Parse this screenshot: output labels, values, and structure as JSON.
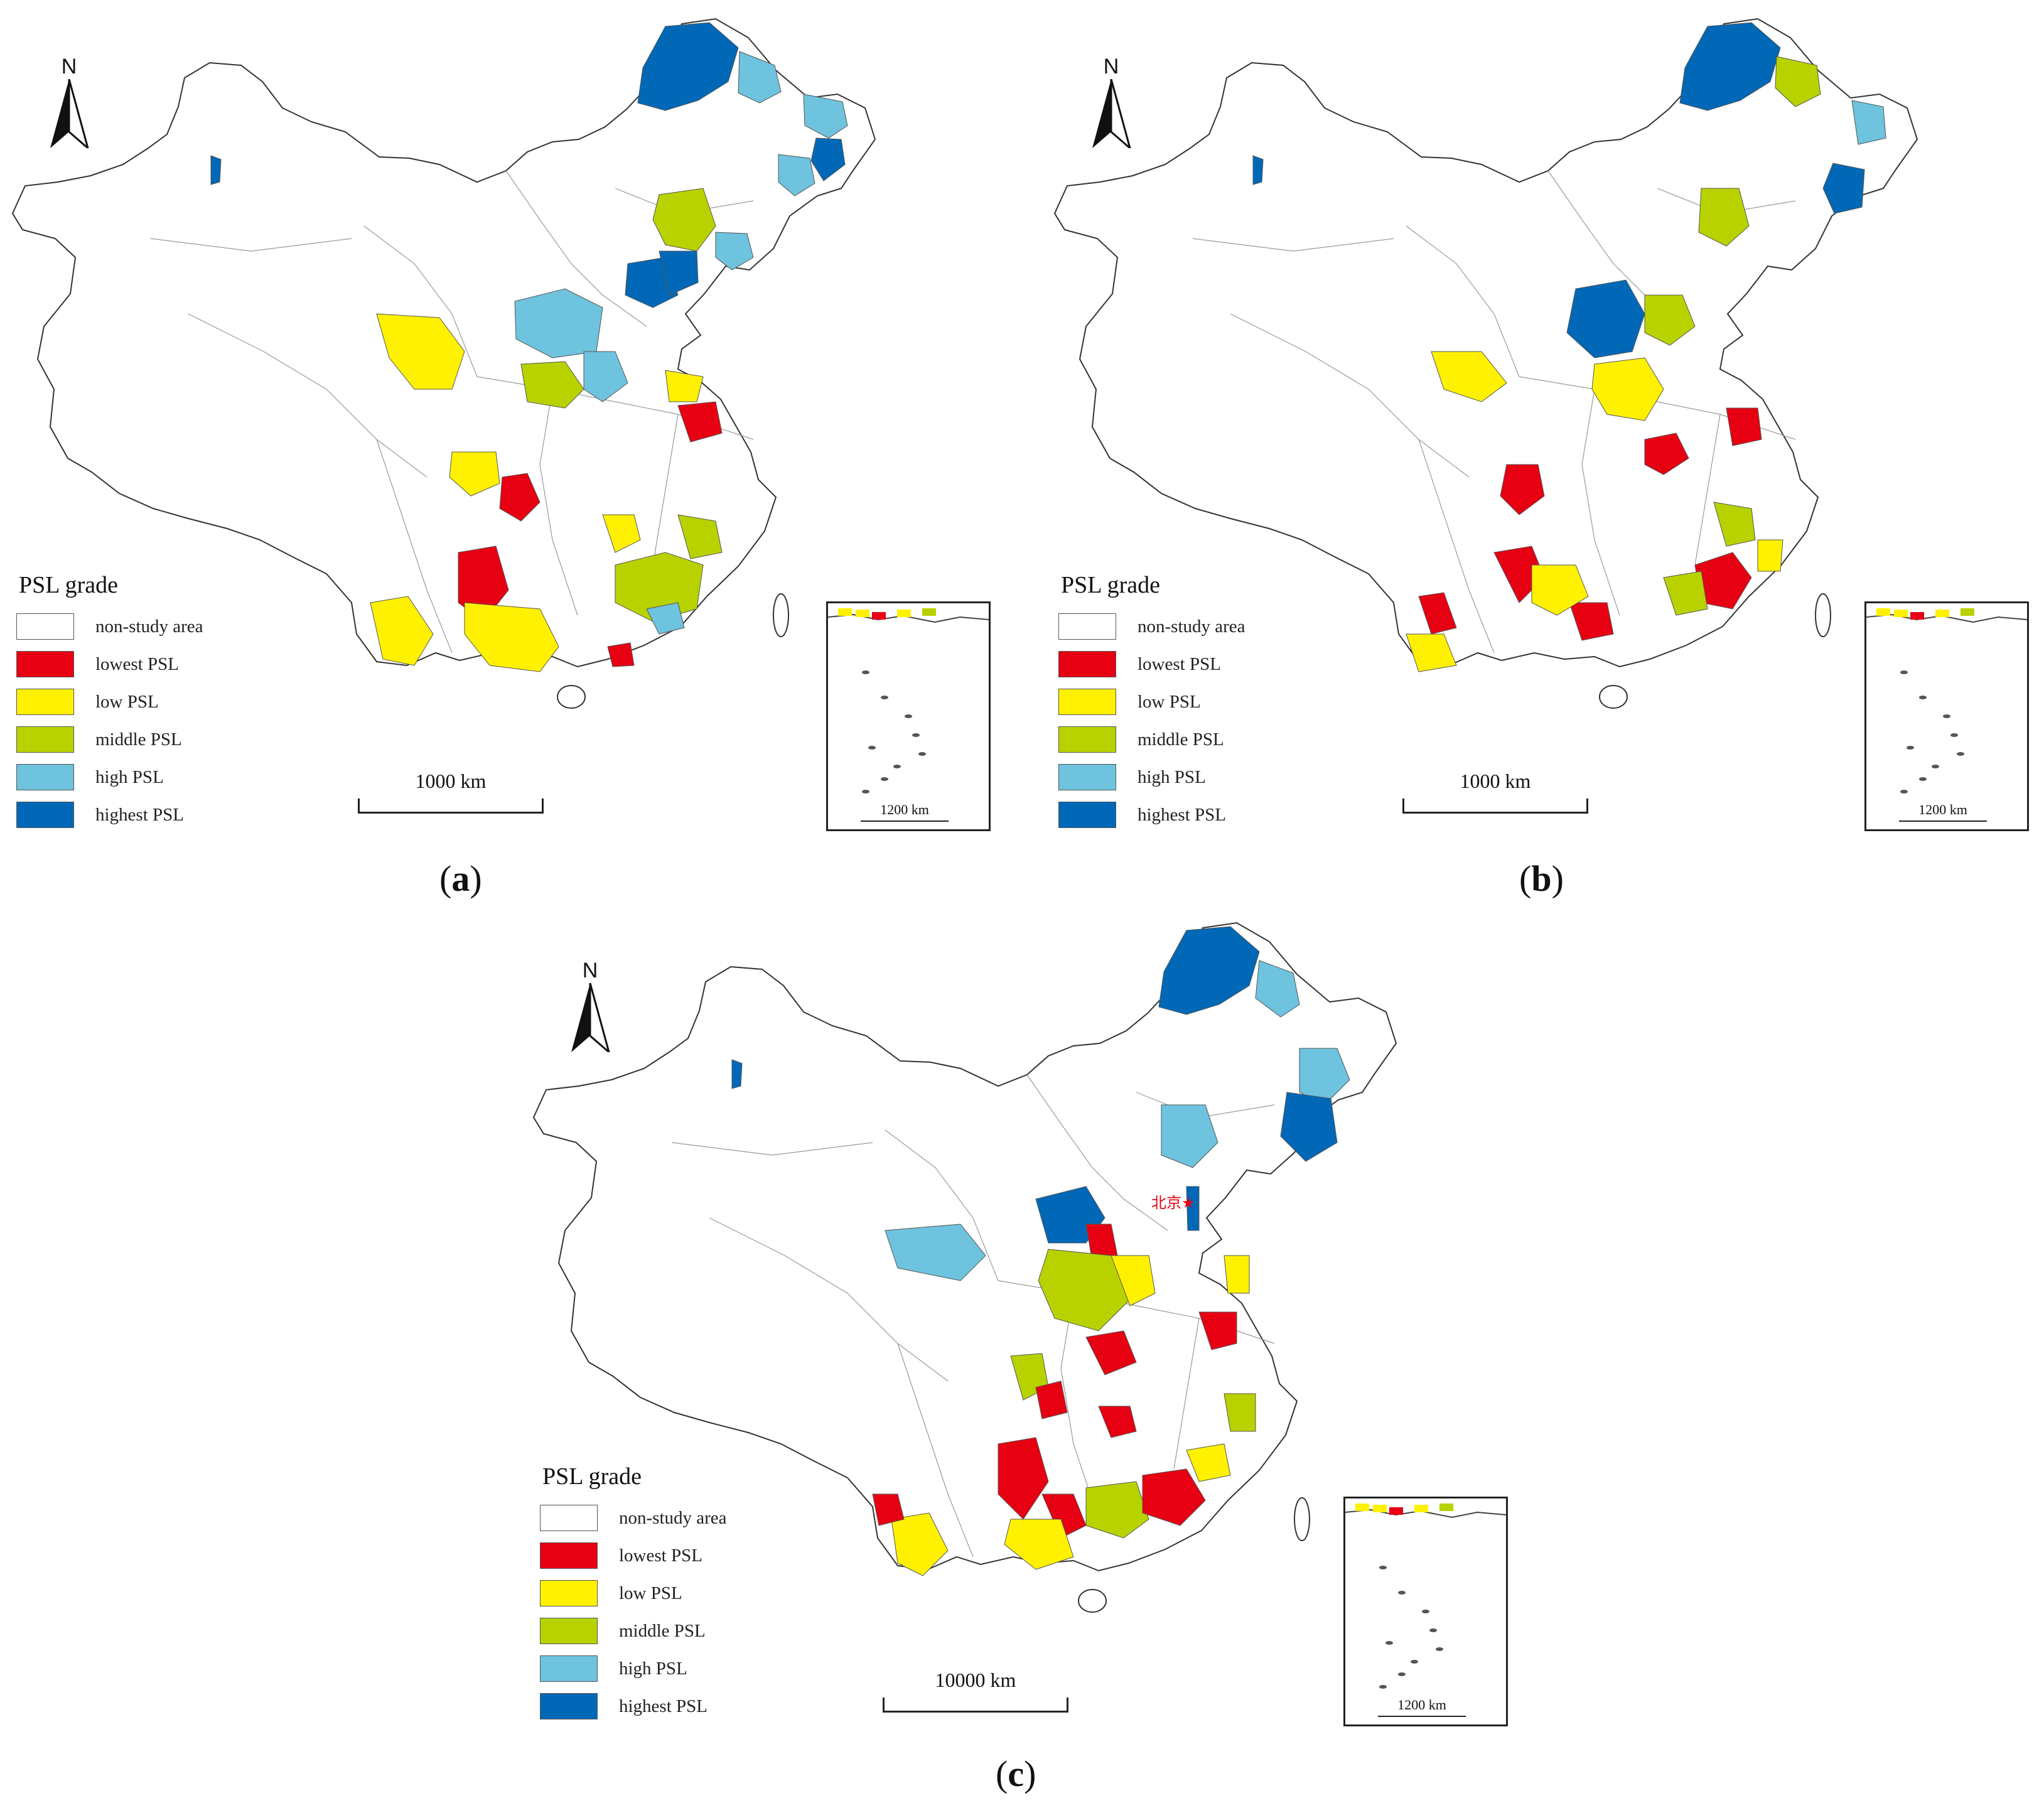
{
  "legend": {
    "title": "PSL grade",
    "items": [
      {
        "key": "non",
        "label": "non-study area",
        "color": "#ffffff"
      },
      {
        "key": "lowest",
        "label": "lowest PSL",
        "color": "#e60012"
      },
      {
        "key": "low",
        "label": "low PSL",
        "color": "#fff100"
      },
      {
        "key": "middle",
        "label": "middle PSL",
        "color": "#b8d200"
      },
      {
        "key": "high",
        "label": "high PSL",
        "color": "#6ec3de"
      },
      {
        "key": "highest",
        "label": "highest PSL",
        "color": "#0068b7"
      }
    ]
  },
  "north_label": "N",
  "panels": [
    {
      "id": "a",
      "caption_open": "(",
      "caption_letter": "a",
      "caption_close": ")",
      "scale_label": "1000 km",
      "inset_scale_label": "1200 km"
    },
    {
      "id": "b",
      "caption_open": "(",
      "caption_letter": "b",
      "caption_close": ")",
      "scale_label": "1000 km",
      "inset_scale_label": "1200 km"
    },
    {
      "id": "c",
      "caption_open": "(",
      "caption_letter": "c",
      "caption_close": ")",
      "scale_label": "10000 km",
      "inset_scale_label": "1200 km",
      "city_annotation": "北京★"
    }
  ]
}
